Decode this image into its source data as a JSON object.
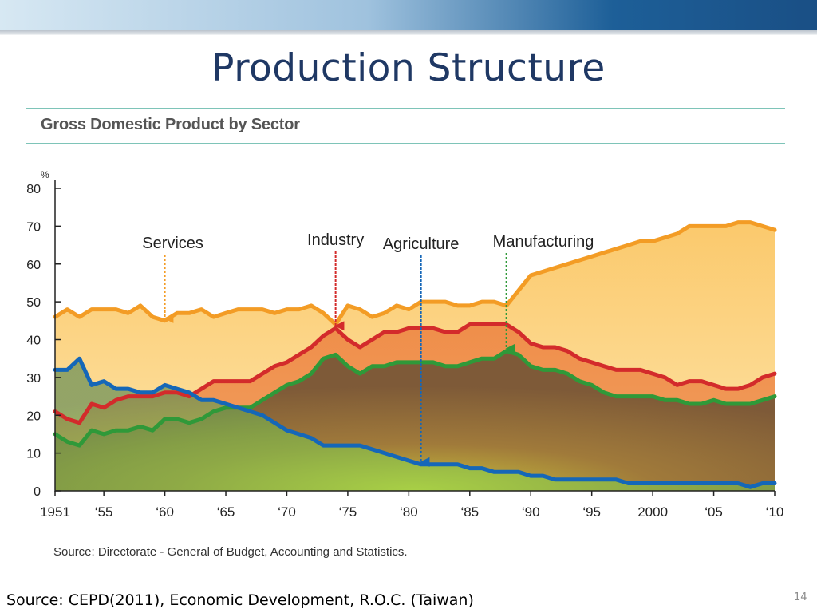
{
  "slide": {
    "title": "Production Structure",
    "source_note": "Source: CEPD(2011), Economic Development, R.O.C. (Taiwan)",
    "page_number": "14"
  },
  "chart_data": {
    "type": "area",
    "title": "Gross Domestic Product by Sector",
    "ylabel": "%",
    "xlabel": "",
    "ylim": [
      0,
      80
    ],
    "yticks": [
      0,
      10,
      20,
      30,
      40,
      50,
      60,
      70,
      80
    ],
    "xlim": [
      1951,
      2010
    ],
    "xticks": [
      {
        "value": 1951,
        "label": "1951"
      },
      {
        "value": 1955,
        "label": "‘55"
      },
      {
        "value": 1960,
        "label": "‘60"
      },
      {
        "value": 1965,
        "label": "‘65"
      },
      {
        "value": 1970,
        "label": "‘70"
      },
      {
        "value": 1975,
        "label": "‘75"
      },
      {
        "value": 1980,
        "label": "‘80"
      },
      {
        "value": 1985,
        "label": "‘85"
      },
      {
        "value": 1990,
        "label": "‘90"
      },
      {
        "value": 1995,
        "label": "‘95"
      },
      {
        "value": 2000,
        "label": "2000"
      },
      {
        "value": 2005,
        "label": "‘05"
      },
      {
        "value": 2010,
        "label": "‘10"
      }
    ],
    "x": [
      1951,
      1952,
      1953,
      1954,
      1955,
      1956,
      1957,
      1958,
      1959,
      1960,
      1961,
      1962,
      1963,
      1964,
      1965,
      1966,
      1967,
      1968,
      1969,
      1970,
      1971,
      1972,
      1973,
      1974,
      1975,
      1976,
      1977,
      1978,
      1979,
      1980,
      1981,
      1982,
      1983,
      1984,
      1985,
      1986,
      1987,
      1988,
      1989,
      1990,
      1991,
      1992,
      1993,
      1994,
      1995,
      1996,
      1997,
      1998,
      1999,
      2000,
      2001,
      2002,
      2003,
      2004,
      2005,
      2006,
      2007,
      2008,
      2009,
      2010
    ],
    "series": [
      {
        "name": "Services",
        "color": "#f39c25",
        "values": [
          46,
          48,
          46,
          48,
          48,
          48,
          47,
          49,
          46,
          45,
          47,
          47,
          48,
          46,
          47,
          48,
          48,
          48,
          47,
          48,
          48,
          49,
          47,
          44,
          49,
          48,
          46,
          47,
          49,
          48,
          50,
          50,
          50,
          49,
          49,
          50,
          50,
          49,
          53,
          57,
          58,
          59,
          60,
          61,
          62,
          63,
          64,
          65,
          66,
          66,
          67,
          68,
          70,
          70,
          70,
          70,
          71,
          71,
          70,
          69
        ]
      },
      {
        "name": "Industry",
        "color": "#d32b2b",
        "values": [
          21,
          19,
          18,
          23,
          22,
          24,
          25,
          25,
          25,
          26,
          26,
          25,
          27,
          29,
          29,
          29,
          29,
          31,
          33,
          34,
          36,
          38,
          41,
          43,
          40,
          38,
          40,
          42,
          42,
          43,
          43,
          43,
          42,
          42,
          44,
          44,
          44,
          44,
          42,
          39,
          38,
          38,
          37,
          35,
          34,
          33,
          32,
          32,
          32,
          31,
          30,
          28,
          29,
          29,
          28,
          27,
          27,
          28,
          30,
          31
        ]
      },
      {
        "name": "Agriculture",
        "color": "#1567b8",
        "values": [
          32,
          32,
          35,
          28,
          29,
          27,
          27,
          26,
          26,
          28,
          27,
          26,
          24,
          24,
          23,
          22,
          21,
          20,
          18,
          16,
          15,
          14,
          12,
          12,
          12,
          12,
          11,
          10,
          9,
          8,
          7,
          7,
          7,
          7,
          6,
          6,
          5,
          5,
          5,
          4,
          4,
          3,
          3,
          3,
          3,
          3,
          3,
          2,
          2,
          2,
          2,
          2,
          2,
          2,
          2,
          2,
          2,
          1,
          2,
          2
        ]
      },
      {
        "name": "Manufacturing",
        "color": "#2f9939",
        "values": [
          15,
          13,
          12,
          16,
          15,
          16,
          16,
          17,
          16,
          19,
          19,
          18,
          19,
          21,
          22,
          22,
          22,
          24,
          26,
          28,
          29,
          31,
          35,
          36,
          33,
          31,
          33,
          33,
          34,
          34,
          34,
          34,
          33,
          33,
          34,
          35,
          35,
          37,
          36,
          33,
          32,
          32,
          31,
          29,
          28,
          26,
          25,
          25,
          25,
          25,
          24,
          24,
          23,
          23,
          24,
          23,
          23,
          23,
          24,
          25
        ]
      }
    ],
    "annotations": [
      {
        "label": "Services",
        "series": "Services",
        "year": 1960
      },
      {
        "label": "Industry",
        "series": "Industry",
        "year": 1974
      },
      {
        "label": "Agriculture",
        "series": "Agriculture",
        "year": 1981
      },
      {
        "label": "Manufacturing",
        "series": "Manufacturing",
        "year": 1988
      }
    ],
    "source": "Source: Directorate - General of Budget, Accounting and Statistics."
  }
}
